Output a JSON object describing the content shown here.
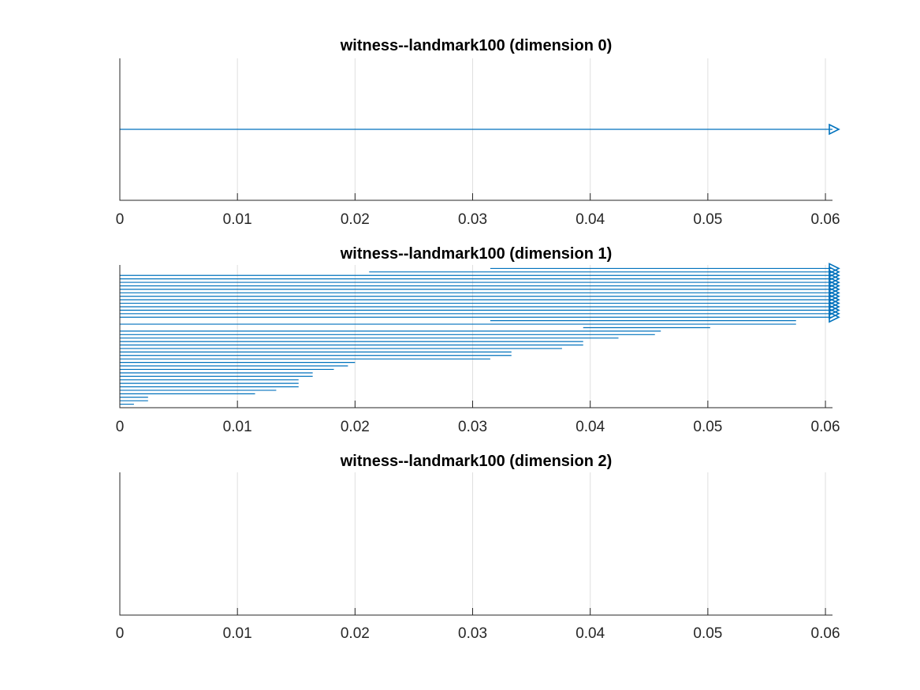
{
  "chart_data": [
    {
      "type": "barcode",
      "title": "witness--landmark100 (dimension 0)",
      "xlim": [
        0,
        0.0606
      ],
      "xticks": [
        0,
        0.01,
        0.02,
        0.03,
        0.04,
        0.05,
        0.06
      ],
      "xtick_labels": [
        "0",
        "0.01",
        "0.02",
        "0.03",
        "0.04",
        "0.05",
        "0.06"
      ],
      "grid": true,
      "intervals": [
        {
          "birth": 0,
          "death": null
        }
      ]
    },
    {
      "type": "barcode",
      "title": "witness--landmark100 (dimension 1)",
      "xlim": [
        0,
        0.0606
      ],
      "xticks": [
        0,
        0.01,
        0.02,
        0.03,
        0.04,
        0.05,
        0.06
      ],
      "xtick_labels": [
        "0",
        "0.01",
        "0.02",
        "0.03",
        "0.04",
        "0.05",
        "0.06"
      ],
      "grid": true,
      "intervals": [
        {
          "birth": 0.0315,
          "death": null
        },
        {
          "birth": 0.0212,
          "death": null
        },
        {
          "birth": 0,
          "death": null
        },
        {
          "birth": 0,
          "death": null
        },
        {
          "birth": 0,
          "death": null
        },
        {
          "birth": 0,
          "death": null
        },
        {
          "birth": 0,
          "death": null
        },
        {
          "birth": 0,
          "death": null
        },
        {
          "birth": 0,
          "death": null
        },
        {
          "birth": 0,
          "death": null
        },
        {
          "birth": 0,
          "death": null
        },
        {
          "birth": 0,
          "death": null
        },
        {
          "birth": 0,
          "death": null
        },
        {
          "birth": 0,
          "death": null
        },
        {
          "birth": 0,
          "death": null
        },
        {
          "birth": 0.0315,
          "death": 0.0575
        },
        {
          "birth": 0,
          "death": 0.0575
        },
        {
          "birth": 0.0394,
          "death": 0.0502
        },
        {
          "birth": 0,
          "death": 0.046
        },
        {
          "birth": 0,
          "death": 0.0455
        },
        {
          "birth": 0,
          "death": 0.0424
        },
        {
          "birth": 0,
          "death": 0.0394
        },
        {
          "birth": 0,
          "death": 0.0394
        },
        {
          "birth": 0,
          "death": 0.0376
        },
        {
          "birth": 0,
          "death": 0.0333
        },
        {
          "birth": 0,
          "death": 0.0333
        },
        {
          "birth": 0,
          "death": 0.0315
        },
        {
          "birth": 0,
          "death": 0.02
        },
        {
          "birth": 0,
          "death": 0.0194
        },
        {
          "birth": 0,
          "death": 0.0182
        },
        {
          "birth": 0,
          "death": 0.0164
        },
        {
          "birth": 0,
          "death": 0.0164
        },
        {
          "birth": 0,
          "death": 0.0152
        },
        {
          "birth": 0,
          "death": 0.0152
        },
        {
          "birth": 0,
          "death": 0.0152
        },
        {
          "birth": 0,
          "death": 0.0133
        },
        {
          "birth": 0,
          "death": 0.0115
        },
        {
          "birth": 0,
          "death": 0.0024
        },
        {
          "birth": 0,
          "death": 0.0024
        },
        {
          "birth": 0,
          "death": 0.0012
        }
      ]
    },
    {
      "type": "barcode",
      "title": "witness--landmark100 (dimension 2)",
      "xlim": [
        0,
        0.0606
      ],
      "xticks": [
        0,
        0.01,
        0.02,
        0.03,
        0.04,
        0.05,
        0.06
      ],
      "xtick_labels": [
        "0",
        "0.01",
        "0.02",
        "0.03",
        "0.04",
        "0.05",
        "0.06"
      ],
      "grid": true,
      "intervals": []
    }
  ]
}
